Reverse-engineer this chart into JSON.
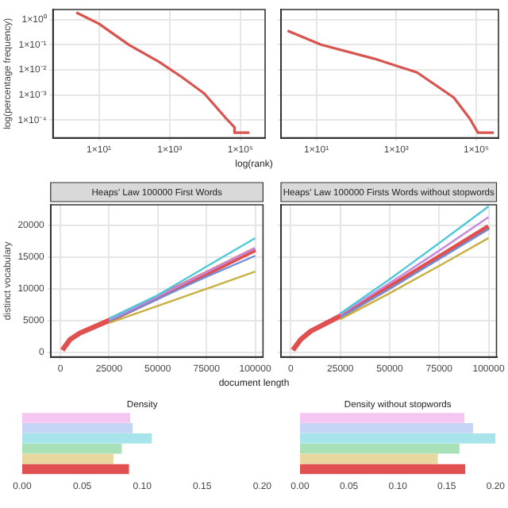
{
  "chart_data": [
    {
      "type": "line",
      "ylabel": "log(percentage frequency)",
      "xlabel": "log(rank)",
      "log": "xy",
      "xlim": [
        0.5,
        500000
      ],
      "ylim": [
        2e-05,
        2.5
      ],
      "xticks": [
        {
          "value": 10,
          "label": "1×10¹"
        },
        {
          "value": 1000,
          "label": "1×10³"
        },
        {
          "value": 100000,
          "label": "1×10⁵"
        }
      ],
      "yticks": [
        {
          "value": 1,
          "label": "1×10⁰"
        },
        {
          "value": 0.1,
          "label": "1×10⁻¹"
        },
        {
          "value": 0.01,
          "label": "1×10⁻²"
        },
        {
          "value": 0.001,
          "label": "1×10⁻³"
        },
        {
          "value": 0.0001,
          "label": "1×10⁻⁴"
        }
      ],
      "grid": true,
      "marker": "none",
      "series": [
        {
          "color": "#d9534f",
          "x": [
            2.3,
            10,
            70,
            500,
            2200,
            9500,
            40000,
            68000,
            68000,
            180000
          ],
          "values": [
            1.9,
            0.68,
            0.1,
            0.021,
            0.0052,
            0.00115,
            0.000115,
            5.2e-05,
            3.2e-05,
            3.2e-05
          ]
        }
      ]
    },
    {
      "type": "line",
      "log": "xy",
      "xlim": [
        1.3,
        360000
      ],
      "ylim": [
        2e-05,
        2.5
      ],
      "xticks": [
        {
          "value": 10,
          "label": "1×10¹"
        },
        {
          "value": 1000,
          "label": "1×10³"
        },
        {
          "value": 100000,
          "label": "1×10⁵"
        }
      ],
      "yticks": [
        {
          "value": 1,
          "label": null
        },
        {
          "value": 0.1,
          "label": null
        },
        {
          "value": 0.01,
          "label": null
        },
        {
          "value": 0.001,
          "label": null
        },
        {
          "value": 0.0001,
          "label": null
        }
      ],
      "grid": true,
      "marker": "none",
      "tick_labels": "x",
      "series": [
        {
          "color": "#d9534f",
          "x": [
            1.9,
            13,
            275,
            3300,
            27500,
            69000,
            110000,
            275000
          ],
          "values": [
            0.36,
            0.1,
            0.028,
            0.0079,
            0.00079,
            0.000115,
            3.2e-05,
            3.2e-05
          ]
        }
      ]
    },
    {
      "type": "line",
      "title": "Heaps' Law 100000 First Words",
      "ylabel": "distinct vocabulary",
      "xlabel": "document length",
      "x": [
        1000,
        5000,
        10000,
        25000,
        50000,
        75000,
        100000
      ],
      "xlim": [
        -5000,
        104000
      ],
      "ylim": [
        -750,
        23250
      ],
      "xticks": [
        0,
        25000,
        50000,
        75000,
        100000
      ],
      "yticks": [
        0,
        5000,
        10000,
        15000,
        20000
      ],
      "grid": true,
      "marker": "none",
      "series": [
        {
          "color": "#4fc8d8",
          "values": [
            null,
            null,
            null,
            5300,
            9000,
            13500,
            18000
          ]
        },
        {
          "color": "#c48be0",
          "values": [
            null,
            null,
            null,
            5100,
            8800,
            12600,
            16400
          ]
        },
        {
          "color": "#6f8fd8",
          "values": [
            null,
            null,
            null,
            4900,
            8400,
            11900,
            15200
          ]
        },
        {
          "color": "#c8b040",
          "values": [
            null,
            null,
            null,
            4600,
            7300,
            10000,
            12700
          ]
        },
        {
          "color": "#e05050",
          "values": [
            300,
            2000,
            3000,
            5000,
            8650,
            12400,
            16200
          ]
        }
      ]
    },
    {
      "type": "line",
      "title": "Heaps' Law 100000 Firsts Words without stopwords",
      "x": [
        1000,
        5000,
        10000,
        25000,
        50000,
        75000,
        100000
      ],
      "xlim": [
        -5000,
        104000
      ],
      "ylim": [
        -750,
        23250
      ],
      "xticks": [
        0,
        25000,
        50000,
        75000,
        100000
      ],
      "yticks": [
        0,
        5000,
        10000,
        15000,
        20000
      ],
      "grid": true,
      "marker": "none",
      "tick_labels": "x",
      "series": [
        {
          "color": "#4fc8d8",
          "values": [
            null,
            null,
            null,
            6100,
            11500,
            17200,
            23000
          ]
        },
        {
          "color": "#c48be0",
          "values": [
            null,
            null,
            null,
            5900,
            10900,
            16000,
            21300
          ]
        },
        {
          "color": "#6f8fd8",
          "values": [
            null,
            null,
            null,
            5500,
            10000,
            14700,
            19400
          ]
        },
        {
          "color": "#c8b040",
          "values": [
            null,
            null,
            null,
            5200,
            9300,
            13600,
            18000
          ]
        },
        {
          "color": "#e05050",
          "values": [
            300,
            2000,
            3300,
            5700,
            10300,
            15000,
            19800
          ]
        }
      ]
    },
    {
      "type": "bar",
      "orientation": "horizontal",
      "title": "Density",
      "categories": [
        null,
        null,
        null,
        null,
        null,
        null
      ],
      "values": [
        0.09,
        0.092,
        0.108,
        0.083,
        0.076,
        0.089
      ],
      "colors": [
        "#f5c6f0",
        "#c6d4f5",
        "#a8e4ec",
        "#a8e0b8",
        "#e8d8a0",
        "#e05050"
      ],
      "xlim": [
        0,
        0.2
      ],
      "xticks": [
        {
          "value": 0,
          "label": "0.00"
        },
        {
          "value": 0.05,
          "label": "0.05"
        },
        {
          "value": 0.1,
          "label": "0.10"
        },
        {
          "value": 0.15,
          "label": "0.15"
        },
        {
          "value": 0.2,
          "label": "0.20"
        }
      ]
    },
    {
      "type": "bar",
      "orientation": "horizontal",
      "title": "Density without stopwords",
      "categories": [
        null,
        null,
        null,
        null,
        null,
        null
      ],
      "values": [
        0.168,
        0.177,
        0.2,
        0.163,
        0.141,
        0.169
      ],
      "colors": [
        "#f5c6f0",
        "#c6d4f5",
        "#a8e4ec",
        "#a8e0b8",
        "#e8d8a0",
        "#e05050"
      ],
      "xlim": [
        0,
        0.2
      ],
      "xticks": [
        {
          "value": 0,
          "label": "0.00"
        },
        {
          "value": 0.05,
          "label": "0.05"
        },
        {
          "value": 0.1,
          "label": "0.10"
        },
        {
          "value": 0.15,
          "label": "0.15"
        },
        {
          "value": 0.2,
          "label": "0.20"
        }
      ]
    }
  ]
}
